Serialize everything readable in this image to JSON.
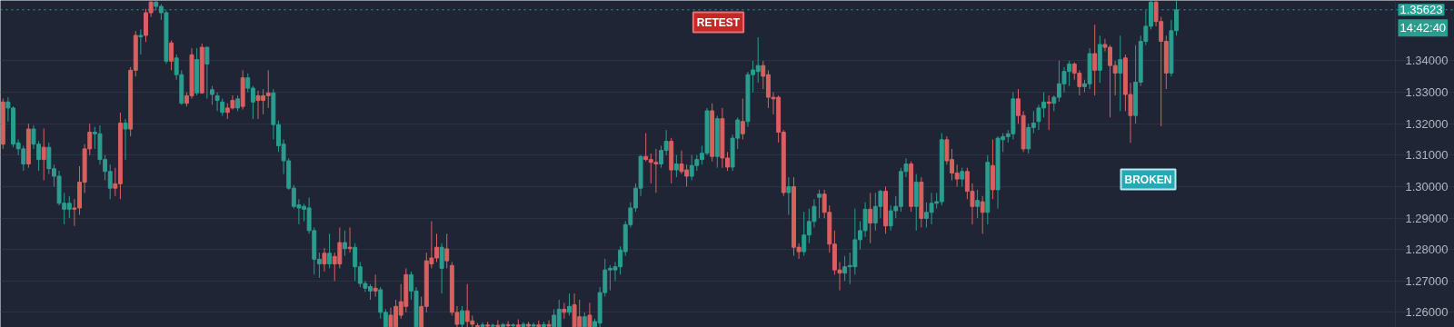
{
  "chart_data": {
    "type": "candlestick",
    "categories": [
      null,
      null,
      null,
      null,
      null,
      null,
      null,
      null,
      null,
      null,
      null,
      null,
      null,
      null,
      null,
      null,
      null,
      null,
      null,
      null,
      null,
      null,
      null,
      null,
      null,
      null,
      null,
      null,
      null,
      null,
      null,
      null,
      null,
      null,
      null,
      null,
      null,
      null,
      null,
      null,
      null,
      null,
      null,
      null,
      null,
      null,
      null,
      null,
      null,
      null,
      null,
      null,
      null,
      null,
      null,
      null,
      null,
      null,
      null,
      null,
      null,
      null,
      null,
      null,
      null,
      null,
      null,
      null,
      null,
      null,
      null,
      null,
      null,
      null,
      null,
      null,
      null,
      null,
      null,
      null,
      null,
      null,
      null,
      null,
      null,
      null,
      null,
      null,
      null,
      null,
      null,
      null,
      null,
      null,
      null,
      null,
      null,
      null,
      null,
      null,
      null,
      null,
      null,
      null,
      null,
      null,
      null,
      null,
      null,
      null,
      null,
      null,
      null,
      null,
      null,
      null,
      null,
      null,
      null,
      null,
      null,
      null,
      null,
      null,
      null,
      null,
      null,
      null,
      null,
      null,
      null,
      null,
      null,
      null,
      null,
      null,
      null,
      null,
      null,
      null,
      null,
      null,
      null,
      null,
      null,
      null,
      null,
      null,
      null,
      null,
      null,
      null,
      null,
      null,
      null,
      null,
      null,
      null,
      null,
      null,
      null,
      null,
      null,
      null,
      null,
      null,
      null,
      null,
      null,
      null,
      null,
      null,
      null,
      null,
      null,
      null,
      null,
      null,
      null,
      null,
      null,
      null,
      null,
      null,
      null,
      null,
      null,
      null,
      null,
      null,
      null,
      null,
      null,
      null,
      null,
      null,
      null,
      null,
      null,
      null,
      null,
      null,
      null,
      null,
      null,
      null,
      null,
      null,
      null,
      null,
      null,
      null,
      null,
      null,
      null,
      null,
      null,
      null,
      null,
      null,
      null,
      null,
      null,
      null,
      null,
      null,
      null,
      null,
      null,
      null,
      null,
      null,
      null,
      null,
      null,
      null,
      null,
      null,
      null,
      null,
      null,
      null,
      null,
      null,
      null,
      null,
      null,
      null,
      null,
      null,
      null,
      null,
      null,
      null,
      null,
      null,
      null,
      null,
      null,
      null,
      null,
      null,
      null,
      null,
      null,
      null,
      null,
      null,
      null,
      null,
      null,
      null,
      null,
      null,
      null,
      null,
      null,
      null,
      null,
      null,
      null,
      null,
      null,
      null,
      null
    ],
    "ohlc": [
      [
        1.3269,
        1.328,
        1.312,
        1.3135
      ],
      [
        1.325,
        1.3284,
        1.3207,
        1.3269
      ],
      [
        1.3135,
        1.3255,
        1.3125,
        1.325
      ],
      [
        1.312,
        1.315,
        1.31,
        1.3139
      ],
      [
        1.3072,
        1.313,
        1.305,
        1.312
      ],
      [
        1.3183,
        1.32,
        1.306,
        1.3072
      ],
      [
        1.3135,
        1.3195,
        1.312,
        1.3183
      ],
      [
        1.3086,
        1.3145,
        1.305,
        1.3135
      ],
      [
        1.3125,
        1.3185,
        1.302,
        1.3086
      ],
      [
        1.3057,
        1.314,
        1.304,
        1.3125
      ],
      [
        1.3033,
        1.307,
        1.3,
        1.3057
      ],
      [
        1.2947,
        1.305,
        1.294,
        1.3033
      ],
      [
        1.2928,
        1.298,
        1.288,
        1.2947
      ],
      [
        1.2928,
        1.297,
        1.29,
        1.2947
      ],
      [
        1.2932,
        1.296,
        1.2875,
        1.2928
      ],
      [
        1.3014,
        1.3065,
        1.291,
        1.2932
      ],
      [
        1.312,
        1.3135,
        1.298,
        1.3014
      ],
      [
        1.3173,
        1.32,
        1.31,
        1.312
      ],
      [
        1.3168,
        1.319,
        1.312,
        1.3173
      ],
      [
        1.3086,
        1.3195,
        1.307,
        1.3168
      ],
      [
        1.3048,
        1.31,
        1.302,
        1.3086
      ],
      [
        1.2995,
        1.307,
        1.296,
        1.3048
      ],
      [
        1.3009,
        1.306,
        1.297,
        1.2995
      ],
      [
        1.3202,
        1.3235,
        1.296,
        1.3009
      ],
      [
        1.3183,
        1.3215,
        1.3085,
        1.3202
      ],
      [
        1.337,
        1.338,
        1.316,
        1.3183
      ],
      [
        1.3481,
        1.3495,
        1.335,
        1.337
      ],
      [
        1.3476,
        1.35,
        1.342,
        1.3481
      ],
      [
        1.3553,
        1.3565,
        1.346,
        1.3481
      ],
      [
        1.3587,
        1.359,
        1.354,
        1.3553
      ],
      [
        1.3573,
        1.359,
        1.356,
        1.3587
      ],
      [
        1.3553,
        1.358,
        1.353,
        1.3573
      ],
      [
        1.3399,
        1.356,
        1.339,
        1.3553
      ],
      [
        1.3457,
        1.3465,
        1.337,
        1.3399
      ],
      [
        1.3356,
        1.342,
        1.334,
        1.3409
      ],
      [
        1.3265,
        1.337,
        1.326,
        1.3356
      ],
      [
        1.3289,
        1.33,
        1.3255,
        1.3265
      ],
      [
        1.3419,
        1.344,
        1.328,
        1.3289
      ],
      [
        1.3298,
        1.344,
        1.329,
        1.3404
      ],
      [
        1.3443,
        1.3455,
        1.3295,
        1.3298
      ],
      [
        1.339,
        1.3445,
        1.328,
        1.3443
      ],
      [
        1.3293,
        1.332,
        1.326,
        1.3308
      ],
      [
        1.3274,
        1.33,
        1.324,
        1.3289
      ],
      [
        1.3236,
        1.328,
        1.3225,
        1.3269
      ],
      [
        1.325,
        1.3265,
        1.3215,
        1.3236
      ],
      [
        1.3274,
        1.329,
        1.3245,
        1.325
      ],
      [
        1.325,
        1.329,
        1.324,
        1.3279
      ],
      [
        1.3346,
        1.337,
        1.3245,
        1.3255
      ],
      [
        1.3313,
        1.336,
        1.33,
        1.3346
      ],
      [
        1.3269,
        1.332,
        1.3215,
        1.3313
      ],
      [
        1.3289,
        1.3305,
        1.3215,
        1.3274
      ],
      [
        1.3289,
        1.331,
        1.323,
        1.3274
      ],
      [
        1.3298,
        1.337,
        1.325,
        1.3289
      ],
      [
        1.3197,
        1.331,
        1.315,
        1.3298
      ],
      [
        1.313,
        1.321,
        1.311,
        1.3197
      ],
      [
        1.3082,
        1.315,
        1.304,
        1.3135
      ],
      [
        1.2995,
        1.309,
        1.299,
        1.3082
      ],
      [
        1.2937,
        1.3005,
        1.293,
        1.2995
      ],
      [
        1.2932,
        1.296,
        1.288,
        1.2942
      ],
      [
        1.2928,
        1.2945,
        1.289,
        1.2937
      ],
      [
        1.286,
        1.2965,
        1.285,
        1.2932
      ],
      [
        1.2769,
        1.287,
        1.272,
        1.286
      ],
      [
        1.2754,
        1.279,
        1.271,
        1.2769
      ],
      [
        1.2788,
        1.2805,
        1.273,
        1.2754
      ],
      [
        1.2754,
        1.285,
        1.274,
        1.2788
      ],
      [
        1.2778,
        1.279,
        1.27,
        1.2754
      ],
      [
        1.2822,
        1.287,
        1.274,
        1.2754
      ],
      [
        1.2803,
        1.286,
        1.278,
        1.2822
      ],
      [
        1.2807,
        1.287,
        1.279,
        1.2803
      ],
      [
        1.2745,
        1.282,
        1.27,
        1.2807
      ],
      [
        1.2692,
        1.276,
        1.268,
        1.2745
      ],
      [
        1.2677,
        1.27,
        1.2665,
        1.2692
      ],
      [
        1.2668,
        1.269,
        1.264,
        1.2682
      ],
      [
        1.2677,
        1.272,
        1.265,
        1.2668
      ],
      [
        1.26,
        1.268,
        1.258,
        1.2672
      ],
      [
        1.2554,
        1.261,
        1.2553,
        1.26
      ],
      [
        1.2591,
        1.2615,
        1.2553,
        1.2554
      ],
      [
        1.2619,
        1.264,
        1.2553,
        1.2554
      ],
      [
        1.2634,
        1.269,
        1.258,
        1.2591
      ],
      [
        1.272,
        1.274,
        1.26,
        1.2619
      ],
      [
        1.2668,
        1.273,
        1.264,
        1.272
      ],
      [
        1.2554,
        1.268,
        1.2553,
        1.2668
      ],
      [
        1.2619,
        1.265,
        1.2553,
        1.2554
      ],
      [
        1.2764,
        1.279,
        1.26,
        1.2619
      ],
      [
        1.2773,
        1.289,
        1.274,
        1.2754
      ],
      [
        1.2807,
        1.285,
        1.276,
        1.2773
      ],
      [
        1.274,
        1.282,
        1.266,
        1.2807
      ],
      [
        1.2802,
        1.285,
        1.274,
        1.2764
      ],
      [
        1.2749,
        1.276,
        1.259,
        1.26
      ],
      [
        1.26,
        1.262,
        1.2553,
        1.2562
      ],
      [
        1.2562,
        1.262,
        1.2553,
        1.2605
      ],
      [
        1.2605,
        1.269,
        1.2553,
        1.2571
      ],
      [
        1.2573,
        1.259,
        1.2553,
        1.2562
      ],
      [
        1.2558,
        1.2566,
        1.2553,
        1.2555
      ],
      [
        1.2555,
        1.2568,
        1.2553,
        1.256
      ],
      [
        1.256,
        1.257,
        1.2553,
        1.2556
      ],
      [
        1.2556,
        1.2564,
        1.2553,
        1.2559
      ],
      [
        1.2559,
        1.2575,
        1.2553,
        1.2555
      ],
      [
        1.2555,
        1.2566,
        1.2553,
        1.2561
      ],
      [
        1.2561,
        1.2572,
        1.2553,
        1.2557
      ],
      [
        1.2557,
        1.2565,
        1.2553,
        1.256
      ],
      [
        1.256,
        1.2578,
        1.2553,
        1.2555
      ],
      [
        1.2555,
        1.2569,
        1.2553,
        1.2562
      ],
      [
        1.2562,
        1.257,
        1.2553,
        1.2556
      ],
      [
        1.2556,
        1.2567,
        1.2553,
        1.256
      ],
      [
        1.256,
        1.2574,
        1.2553,
        1.2555
      ],
      [
        1.2555,
        1.257,
        1.2553,
        1.2561
      ],
      [
        1.2561,
        1.2575,
        1.2553,
        1.2556
      ],
      [
        1.2554,
        1.261,
        1.2553,
        1.2591
      ],
      [
        1.2554,
        1.264,
        1.2553,
        1.261
      ],
      [
        1.261,
        1.263,
        1.258,
        1.26
      ],
      [
        1.26,
        1.266,
        1.259,
        1.2619
      ],
      [
        1.2624,
        1.266,
        1.2553,
        1.2554
      ],
      [
        1.2586,
        1.264,
        1.2553,
        1.2554
      ],
      [
        1.2554,
        1.26,
        1.2553,
        1.2586
      ],
      [
        1.2591,
        1.263,
        1.2553,
        1.2554
      ],
      [
        1.2554,
        1.258,
        1.2553,
        1.2571
      ],
      [
        1.2566,
        1.268,
        1.2553,
        1.2663
      ],
      [
        1.2663,
        1.277,
        1.265,
        1.2735
      ],
      [
        1.2735,
        1.275,
        1.267,
        1.274
      ],
      [
        1.2735,
        1.276,
        1.27,
        1.2745
      ],
      [
        1.2745,
        1.281,
        1.272,
        1.2798
      ],
      [
        1.2793,
        1.289,
        1.278,
        1.2879
      ],
      [
        1.2879,
        1.295,
        1.287,
        1.2932
      ],
      [
        1.2932,
        1.301,
        1.292,
        1.2995
      ],
      [
        1.2995,
        1.31,
        1.297,
        1.3096
      ],
      [
        1.3096,
        1.317,
        1.308,
        1.3086
      ],
      [
        1.3086,
        1.3105,
        1.301,
        1.3077
      ],
      [
        1.3077,
        1.312,
        1.298,
        1.3072
      ],
      [
        1.3072,
        1.313,
        1.306,
        1.3115
      ],
      [
        1.3115,
        1.318,
        1.31,
        1.3144
      ],
      [
        1.3144,
        1.3155,
        1.301,
        1.3053
      ],
      [
        1.3053,
        1.31,
        1.303,
        1.3072
      ],
      [
        1.3072,
        1.3115,
        1.304,
        1.3048
      ],
      [
        1.3053,
        1.307,
        1.3,
        1.3033
      ],
      [
        1.3033,
        1.31,
        1.302,
        1.3067
      ],
      [
        1.3067,
        1.31,
        1.305,
        1.3086
      ],
      [
        1.3086,
        1.313,
        1.307,
        1.3106
      ],
      [
        1.3106,
        1.325,
        1.31,
        1.3241
      ],
      [
        1.3241,
        1.3265,
        1.308,
        1.3096
      ],
      [
        1.3096,
        1.3225,
        1.306,
        1.3216
      ],
      [
        1.3216,
        1.325,
        1.306,
        1.3091
      ],
      [
        1.3091,
        1.311,
        1.305,
        1.3062
      ],
      [
        1.3062,
        1.3165,
        1.305,
        1.3154
      ],
      [
        1.3154,
        1.322,
        1.312,
        1.3212
      ],
      [
        1.3207,
        1.328,
        1.315,
        1.3168
      ],
      [
        1.3207,
        1.3365,
        1.319,
        1.3356
      ],
      [
        1.3356,
        1.34,
        1.33,
        1.3371
      ],
      [
        1.3366,
        1.3475,
        1.333,
        1.3385
      ],
      [
        1.3385,
        1.34,
        1.331,
        1.3351
      ],
      [
        1.3356,
        1.337,
        1.325,
        1.3284
      ],
      [
        1.3284,
        1.33,
        1.323,
        1.3279
      ],
      [
        1.3284,
        1.329,
        1.314,
        1.3173
      ],
      [
        1.3173,
        1.318,
        1.297,
        1.2981
      ],
      [
        1.2981,
        1.303,
        1.291,
        1.3
      ],
      [
        1.3,
        1.303,
        1.278,
        1.2807
      ],
      [
        1.2807,
        1.282,
        1.277,
        1.2793
      ],
      [
        1.2793,
        1.292,
        1.278,
        1.2846
      ],
      [
        1.2846,
        1.293,
        1.282,
        1.2889
      ],
      [
        1.2889,
        1.296,
        1.287,
        1.2937
      ],
      [
        1.2966,
        1.299,
        1.29,
        1.2976
      ],
      [
        1.2976,
        1.299,
        1.29,
        1.2918
      ],
      [
        1.2918,
        1.294,
        1.279,
        1.2817
      ],
      [
        1.2817,
        1.286,
        1.272,
        1.2735
      ],
      [
        1.2735,
        1.276,
        1.267,
        1.2725
      ],
      [
        1.2725,
        1.278,
        1.27,
        1.2745
      ],
      [
        1.2745,
        1.279,
        1.269,
        1.2749
      ],
      [
        1.2745,
        1.293,
        1.272,
        1.2831
      ],
      [
        1.2831,
        1.289,
        1.28,
        1.286
      ],
      [
        1.286,
        1.295,
        1.284,
        1.2928
      ],
      [
        1.2928,
        1.298,
        1.282,
        1.2884
      ],
      [
        1.2884,
        1.298,
        1.286,
        1.2937
      ],
      [
        1.2937,
        1.299,
        1.29,
        1.2985
      ],
      [
        1.2985,
        1.3,
        1.285,
        1.2875
      ],
      [
        1.2875,
        1.294,
        1.286,
        1.2923
      ],
      [
        1.2923,
        1.297,
        1.29,
        1.2937
      ],
      [
        1.2937,
        1.306,
        1.292,
        1.3048
      ],
      [
        1.3048,
        1.309,
        1.303,
        1.3072
      ],
      [
        1.3072,
        1.308,
        1.292,
        1.2937
      ],
      [
        1.2937,
        1.304,
        1.286,
        1.3014
      ],
      [
        1.3014,
        1.303,
        1.287,
        1.2899
      ],
      [
        1.2899,
        1.295,
        1.287,
        1.2918
      ],
      [
        1.2918,
        1.298,
        1.288,
        1.2947
      ],
      [
        1.2947,
        1.298,
        1.293,
        1.2952
      ],
      [
        1.2952,
        1.317,
        1.294,
        1.3149
      ],
      [
        1.3149,
        1.316,
        1.307,
        1.3082
      ],
      [
        1.3086,
        1.312,
        1.302,
        1.3043
      ],
      [
        1.3043,
        1.307,
        1.3,
        1.3024
      ],
      [
        1.3024,
        1.306,
        1.3,
        1.3048
      ],
      [
        1.3048,
        1.306,
        1.296,
        1.2985
      ],
      [
        1.2985,
        1.301,
        1.288,
        1.2937
      ],
      [
        1.2937,
        1.299,
        1.29,
        1.2956
      ],
      [
        1.2952,
        1.297,
        1.285,
        1.2918
      ],
      [
        1.2918,
        1.31,
        1.288,
        1.3077
      ],
      [
        1.3067,
        1.315,
        1.296,
        1.299
      ],
      [
        1.299,
        1.316,
        1.293,
        1.3154
      ],
      [
        1.3149,
        1.317,
        1.311,
        1.3159
      ],
      [
        1.3159,
        1.318,
        1.314,
        1.3168
      ],
      [
        1.3168,
        1.33,
        1.315,
        1.3279
      ],
      [
        1.3279,
        1.331,
        1.32,
        1.3226
      ],
      [
        1.3226,
        1.324,
        1.311,
        1.312
      ],
      [
        1.312,
        1.32,
        1.3105,
        1.3188
      ],
      [
        1.3188,
        1.324,
        1.317,
        1.3202
      ],
      [
        1.3207,
        1.326,
        1.318,
        1.325
      ],
      [
        1.325,
        1.33,
        1.322,
        1.3269
      ],
      [
        1.3269,
        1.329,
        1.318,
        1.3265
      ],
      [
        1.3265,
        1.329,
        1.324,
        1.3284
      ],
      [
        1.3284,
        1.34,
        1.327,
        1.3327
      ],
      [
        1.3327,
        1.338,
        1.33,
        1.3366
      ],
      [
        1.3366,
        1.34,
        1.332,
        1.339
      ],
      [
        1.339,
        1.3395,
        1.334,
        1.3361
      ],
      [
        1.3361,
        1.337,
        1.329,
        1.3318
      ],
      [
        1.3318,
        1.334,
        1.33,
        1.3327
      ],
      [
        1.3327,
        1.344,
        1.331,
        1.3423
      ],
      [
        1.3423,
        1.3515,
        1.329,
        1.337
      ],
      [
        1.337,
        1.348,
        1.333,
        1.3452
      ],
      [
        1.3452,
        1.347,
        1.343,
        1.3443
      ],
      [
        1.3443,
        1.345,
        1.322,
        1.3385
      ],
      [
        1.3385,
        1.34,
        1.329,
        1.3361
      ],
      [
        1.3361,
        1.348,
        1.324,
        1.3404
      ],
      [
        1.3409,
        1.342,
        1.324,
        1.3293
      ],
      [
        1.3293,
        1.333,
        1.3139,
        1.3226
      ],
      [
        1.3226,
        1.345,
        1.32,
        1.3332
      ],
      [
        1.3332,
        1.348,
        1.332,
        1.3462
      ],
      [
        1.3462,
        1.356,
        1.345,
        1.351
      ],
      [
        1.351,
        1.359,
        1.35,
        1.3587
      ],
      [
        1.3587,
        1.359,
        1.351,
        1.3525
      ],
      [
        1.3525,
        1.354,
        1.3192,
        1.3462
      ],
      [
        1.3462,
        1.348,
        1.331,
        1.3361
      ],
      [
        1.3361,
        1.353,
        1.335,
        1.3496
      ],
      [
        1.3496,
        1.359,
        1.348,
        1.3562
      ],
      null,
      null,
      null,
      null,
      null,
      null,
      null,
      null,
      null,
      null,
      null,
      null,
      null,
      null,
      null,
      null,
      null,
      null,
      null,
      null,
      null,
      null,
      null,
      null,
      null,
      null,
      null,
      null,
      null,
      null,
      null,
      null,
      null,
      null,
      null,
      null,
      null,
      null,
      null,
      null,
      null,
      null,
      null,
      null,
      null,
      null,
      null,
      null,
      null,
      null,
      null,
      null,
      null,
      null
    ],
    "ylim": [
      1.2552,
      1.3592
    ],
    "yticks": [
      {
        "value": 1.26,
        "label": "1.26000"
      },
      {
        "value": 1.27,
        "label": "1.27000"
      },
      {
        "value": 1.28,
        "label": "1.28000"
      },
      {
        "value": 1.29,
        "label": "1.29000"
      },
      {
        "value": 1.3,
        "label": "1.30000"
      },
      {
        "value": 1.31,
        "label": "1.31000"
      },
      {
        "value": 1.32,
        "label": "1.32000"
      },
      {
        "value": 1.33,
        "label": "1.33000"
      },
      {
        "value": 1.34,
        "label": "1.34000"
      }
    ],
    "ref_lines": [
      {
        "axis": "y",
        "value": 1.35623,
        "label": "1.35623",
        "color": "#26a69a",
        "line_style": "dotted"
      }
    ],
    "annotations": [
      "RETEST",
      "BROKEN",
      "14:42:40"
    ],
    "grid": "y",
    "tick_labels": "y"
  }
}
